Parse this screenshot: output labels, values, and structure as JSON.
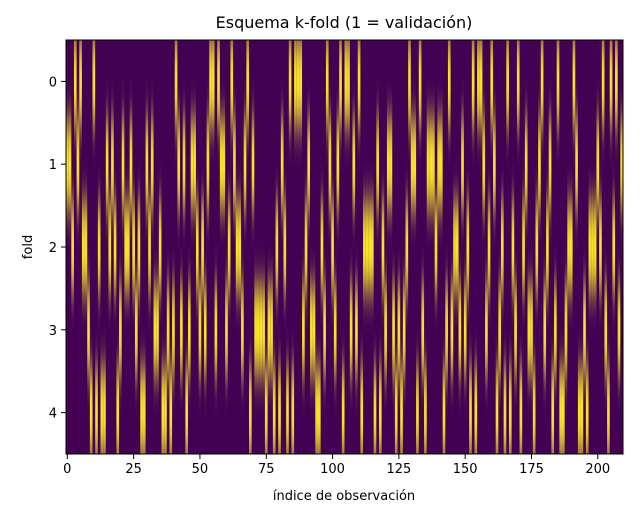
{
  "chart_data": {
    "type": "heatmap",
    "title": "Esquema k-fold (1 = validación)",
    "xlabel": "índice de observación",
    "ylabel": "fold",
    "x_ticks": [
      0,
      25,
      50,
      75,
      100,
      125,
      150,
      175,
      200
    ],
    "y_ticks": [
      0,
      1,
      2,
      3,
      4
    ],
    "x_range": [
      -0.5,
      209.5
    ],
    "y_range": [
      -0.5,
      4.5
    ],
    "n_observations": 210,
    "n_folds": 5,
    "value_range": [
      0,
      1
    ],
    "colormap": "viridis",
    "interpolation": "smooth",
    "colors": {
      "low": "#440154",
      "mid": "#21918c",
      "high": "#fde725"
    },
    "validation_fold_per_observation": [
      1,
      1,
      2,
      0,
      1,
      0,
      2,
      2,
      3,
      4,
      0,
      4,
      2,
      4,
      4,
      1,
      2,
      1,
      2,
      4,
      3,
      1,
      2,
      2,
      1,
      2,
      3,
      2,
      4,
      4,
      1,
      2,
      1,
      3,
      3,
      2,
      4,
      4,
      3,
      4,
      3,
      0,
      1,
      3,
      1,
      4,
      3,
      1,
      1,
      2,
      3,
      2,
      3,
      1,
      0,
      0,
      3,
      0,
      1,
      1,
      3,
      2,
      0,
      1,
      2,
      2,
      3,
      1,
      0,
      4,
      1,
      3,
      3,
      3,
      3,
      4,
      3,
      3,
      4,
      2,
      4,
      1,
      2,
      4,
      0,
      4,
      0,
      0,
      0,
      3,
      2,
      1,
      3,
      3,
      4,
      4,
      2,
      3,
      0,
      1,
      2,
      3,
      1,
      0,
      4,
      0,
      0,
      3,
      1,
      3,
      0,
      4,
      2,
      2,
      2,
      2,
      4,
      1,
      4,
      2,
      3,
      1,
      1,
      3,
      4,
      3,
      4,
      3,
      2,
      0,
      1,
      1,
      4,
      0,
      3,
      4,
      1,
      1,
      1,
      2,
      1,
      1,
      4,
      3,
      0,
      3,
      2,
      2,
      3,
      1,
      3,
      2,
      4,
      0,
      4,
      0,
      0,
      1,
      3,
      2,
      0,
      1,
      4,
      3,
      2,
      4,
      0,
      4,
      2,
      3,
      0,
      4,
      2,
      1,
      3,
      3,
      4,
      2,
      1,
      0,
      3,
      2,
      1,
      4,
      3,
      0,
      4,
      4,
      3,
      2,
      2,
      0,
      1,
      4,
      4,
      3,
      4,
      2,
      2,
      2,
      1,
      2,
      0,
      3,
      4,
      0,
      2,
      0,
      3,
      1
    ]
  }
}
